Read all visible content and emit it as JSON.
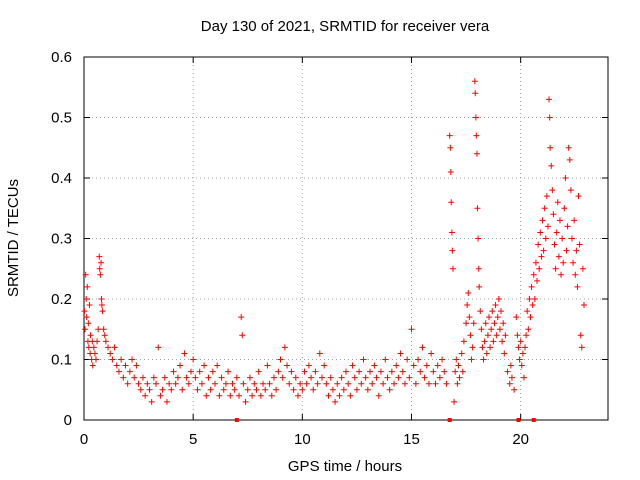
{
  "chart_data": {
    "type": "scatter",
    "title": "Day 130 of 2021, SRMTID for receiver vera",
    "xlabel": "GPS time / hours",
    "ylabel": "SRMTID / TECUs",
    "xlim": [
      0,
      24
    ],
    "ylim": [
      0,
      0.6
    ],
    "xticks": [
      0,
      5,
      10,
      15,
      20
    ],
    "xtick_labels": [
      "0",
      "5",
      "10",
      "15",
      "20"
    ],
    "yticks": [
      0,
      0.1,
      0.2,
      0.3,
      0.4,
      0.5,
      0.6
    ],
    "ytick_labels": [
      "0",
      "0.1",
      "0.2",
      "0.3",
      "0.4",
      "0.5",
      "0.6"
    ],
    "grid": true,
    "marker": "+",
    "color": "#ff0000",
    "series": [
      {
        "name": "SRMTID",
        "points": [
          [
            0.02,
            0.18
          ],
          [
            0.05,
            0.15
          ],
          [
            0.08,
            0.24
          ],
          [
            0.1,
            0.2
          ],
          [
            0.12,
            0.17
          ],
          [
            0.15,
            0.22
          ],
          [
            0.18,
            0.13
          ],
          [
            0.2,
            0.16
          ],
          [
            0.22,
            0.12
          ],
          [
            0.25,
            0.19
          ],
          [
            0.28,
            0.11
          ],
          [
            0.3,
            0.14
          ],
          [
            0.35,
            0.1
          ],
          [
            0.38,
            0.13
          ],
          [
            0.4,
            0.09
          ],
          [
            0.45,
            0.12
          ],
          [
            0.5,
            0.11
          ],
          [
            0.55,
            0.1
          ],
          [
            0.6,
            0.13
          ],
          [
            0.65,
            0.15
          ],
          [
            0.7,
            0.27
          ],
          [
            0.72,
            0.25
          ],
          [
            0.75,
            0.24
          ],
          [
            0.78,
            0.26
          ],
          [
            0.8,
            0.2
          ],
          [
            0.82,
            0.19
          ],
          [
            0.85,
            0.18
          ],
          [
            0.9,
            0.15
          ],
          [
            0.95,
            0.14
          ],
          [
            1.0,
            0.13
          ],
          [
            1.1,
            0.12
          ],
          [
            1.2,
            0.11
          ],
          [
            1.3,
            0.1
          ],
          [
            1.4,
            0.12
          ],
          [
            1.5,
            0.09
          ],
          [
            1.6,
            0.08
          ],
          [
            1.7,
            0.1
          ],
          [
            1.8,
            0.07
          ],
          [
            1.9,
            0.09
          ],
          [
            2.0,
            0.06
          ],
          [
            2.1,
            0.08
          ],
          [
            2.2,
            0.1
          ],
          [
            2.3,
            0.07
          ],
          [
            2.4,
            0.09
          ],
          [
            2.5,
            0.06
          ],
          [
            2.6,
            0.05
          ],
          [
            2.7,
            0.07
          ],
          [
            2.8,
            0.04
          ],
          [
            2.9,
            0.06
          ],
          [
            3.0,
            0.05
          ],
          [
            3.1,
            0.03
          ],
          [
            3.2,
            0.07
          ],
          [
            3.3,
            0.06
          ],
          [
            3.4,
            0.12
          ],
          [
            3.5,
            0.04
          ],
          [
            3.6,
            0.05
          ],
          [
            3.7,
            0.07
          ],
          [
            3.8,
            0.03
          ],
          [
            3.9,
            0.06
          ],
          [
            4.0,
            0.05
          ],
          [
            4.1,
            0.08
          ],
          [
            4.2,
            0.06
          ],
          [
            4.3,
            0.07
          ],
          [
            4.4,
            0.09
          ],
          [
            4.5,
            0.05
          ],
          [
            4.6,
            0.11
          ],
          [
            4.7,
            0.07
          ],
          [
            4.8,
            0.06
          ],
          [
            4.9,
            0.08
          ],
          [
            5.0,
            0.1
          ],
          [
            5.1,
            0.07
          ],
          [
            5.2,
            0.05
          ],
          [
            5.3,
            0.08
          ],
          [
            5.4,
            0.06
          ],
          [
            5.5,
            0.09
          ],
          [
            5.6,
            0.04
          ],
          [
            5.7,
            0.07
          ],
          [
            5.8,
            0.05
          ],
          [
            5.9,
            0.08
          ],
          [
            6.0,
            0.06
          ],
          [
            6.1,
            0.09
          ],
          [
            6.2,
            0.04
          ],
          [
            6.3,
            0.07
          ],
          [
            6.4,
            0.05
          ],
          [
            6.5,
            0.06
          ],
          [
            6.6,
            0.08
          ],
          [
            6.7,
            0.04
          ],
          [
            6.8,
            0.06
          ],
          [
            6.9,
            0.05
          ],
          [
            7.0,
            0.07
          ],
          [
            7.1,
            0.04
          ],
          [
            7.2,
            0.17
          ],
          [
            7.25,
            0.14
          ],
          [
            7.3,
            0.06
          ],
          [
            7.4,
            0.03
          ],
          [
            7.5,
            0.05
          ],
          [
            7.6,
            0.07
          ],
          [
            7.7,
            0.04
          ],
          [
            7.8,
            0.06
          ],
          [
            7.9,
            0.05
          ],
          [
            8.0,
            0.08
          ],
          [
            8.1,
            0.04
          ],
          [
            8.2,
            0.06
          ],
          [
            8.3,
            0.05
          ],
          [
            8.4,
            0.09
          ],
          [
            8.5,
            0.06
          ],
          [
            8.6,
            0.04
          ],
          [
            8.7,
            0.07
          ],
          [
            8.8,
            0.05
          ],
          [
            8.9,
            0.08
          ],
          [
            9.0,
            0.1
          ],
          [
            9.1,
            0.07
          ],
          [
            9.2,
            0.12
          ],
          [
            9.3,
            0.09
          ],
          [
            9.4,
            0.06
          ],
          [
            9.5,
            0.08
          ],
          [
            9.6,
            0.05
          ],
          [
            9.7,
            0.07
          ],
          [
            9.8,
            0.04
          ],
          [
            9.9,
            0.06
          ],
          [
            10.0,
            0.05
          ],
          [
            10.1,
            0.08
          ],
          [
            10.2,
            0.06
          ],
          [
            10.3,
            0.09
          ],
          [
            10.4,
            0.07
          ],
          [
            10.5,
            0.05
          ],
          [
            10.6,
            0.08
          ],
          [
            10.7,
            0.06
          ],
          [
            10.8,
            0.11
          ],
          [
            10.9,
            0.07
          ],
          [
            11.0,
            0.09
          ],
          [
            11.1,
            0.06
          ],
          [
            11.2,
            0.04
          ],
          [
            11.3,
            0.07
          ],
          [
            11.4,
            0.05
          ],
          [
            11.5,
            0.03
          ],
          [
            11.6,
            0.06
          ],
          [
            11.7,
            0.04
          ],
          [
            11.8,
            0.07
          ],
          [
            11.9,
            0.05
          ],
          [
            12.0,
            0.08
          ],
          [
            12.1,
            0.06
          ],
          [
            12.2,
            0.04
          ],
          [
            12.3,
            0.09
          ],
          [
            12.4,
            0.07
          ],
          [
            12.5,
            0.05
          ],
          [
            12.6,
            0.08
          ],
          [
            12.7,
            0.06
          ],
          [
            12.8,
            0.1
          ],
          [
            12.9,
            0.07
          ],
          [
            13.0,
            0.05
          ],
          [
            13.1,
            0.08
          ],
          [
            13.2,
            0.06
          ],
          [
            13.3,
            0.09
          ],
          [
            13.4,
            0.07
          ],
          [
            13.5,
            0.04
          ],
          [
            13.6,
            0.08
          ],
          [
            13.7,
            0.06
          ],
          [
            13.8,
            0.1
          ],
          [
            13.9,
            0.07
          ],
          [
            14.0,
            0.05
          ],
          [
            14.1,
            0.08
          ],
          [
            14.2,
            0.06
          ],
          [
            14.3,
            0.09
          ],
          [
            14.4,
            0.07
          ],
          [
            14.5,
            0.11
          ],
          [
            14.6,
            0.08
          ],
          [
            14.7,
            0.06
          ],
          [
            14.8,
            0.1
          ],
          [
            14.9,
            0.07
          ],
          [
            15.0,
            0.15
          ],
          [
            15.1,
            0.09
          ],
          [
            15.2,
            0.06
          ],
          [
            15.3,
            0.1
          ],
          [
            15.4,
            0.08
          ],
          [
            15.5,
            0.12
          ],
          [
            15.6,
            0.07
          ],
          [
            15.7,
            0.09
          ],
          [
            15.8,
            0.06
          ],
          [
            15.9,
            0.11
          ],
          [
            16.0,
            0.08
          ],
          [
            16.1,
            0.06
          ],
          [
            16.2,
            0.09
          ],
          [
            16.3,
            0.07
          ],
          [
            16.4,
            0.1
          ],
          [
            16.5,
            0.08
          ],
          [
            16.6,
            0.06
          ],
          [
            16.75,
            0.47
          ],
          [
            16.78,
            0.45
          ],
          [
            16.8,
            0.41
          ],
          [
            16.82,
            0.36
          ],
          [
            16.85,
            0.31
          ],
          [
            16.87,
            0.28
          ],
          [
            16.9,
            0.25
          ],
          [
            16.95,
            0.03
          ],
          [
            17.0,
            0.08
          ],
          [
            17.05,
            0.1
          ],
          [
            17.1,
            0.06
          ],
          [
            17.15,
            0.09
          ],
          [
            17.2,
            0.07
          ],
          [
            17.3,
            0.11
          ],
          [
            17.35,
            0.08
          ],
          [
            17.4,
            0.13
          ],
          [
            17.5,
            0.16
          ],
          [
            17.55,
            0.19
          ],
          [
            17.6,
            0.21
          ],
          [
            17.65,
            0.17
          ],
          [
            17.7,
            0.14
          ],
          [
            17.75,
            0.1
          ],
          [
            17.8,
            0.12
          ],
          [
            17.85,
            0.16
          ],
          [
            17.9,
            0.56
          ],
          [
            17.92,
            0.54
          ],
          [
            17.95,
            0.5
          ],
          [
            17.97,
            0.47
          ],
          [
            18.0,
            0.44
          ],
          [
            18.02,
            0.35
          ],
          [
            18.05,
            0.3
          ],
          [
            18.08,
            0.25
          ],
          [
            18.1,
            0.22
          ],
          [
            18.15,
            0.18
          ],
          [
            18.2,
            0.15
          ],
          [
            18.25,
            0.12
          ],
          [
            18.3,
            0.1
          ],
          [
            18.35,
            0.13
          ],
          [
            18.4,
            0.16
          ],
          [
            18.45,
            0.11
          ],
          [
            18.5,
            0.14
          ],
          [
            18.55,
            0.17
          ],
          [
            18.6,
            0.12
          ],
          [
            18.65,
            0.15
          ],
          [
            18.7,
            0.18
          ],
          [
            18.75,
            0.13
          ],
          [
            18.8,
            0.16
          ],
          [
            18.85,
            0.19
          ],
          [
            18.9,
            0.14
          ],
          [
            18.95,
            0.17
          ],
          [
            19.0,
            0.2
          ],
          [
            19.05,
            0.15
          ],
          [
            19.1,
            0.18
          ],
          [
            19.15,
            0.13
          ],
          [
            19.2,
            0.16
          ],
          [
            19.25,
            0.11
          ],
          [
            19.3,
            0.14
          ],
          [
            19.4,
            0.08
          ],
          [
            19.5,
            0.06
          ],
          [
            19.55,
            0.09
          ],
          [
            19.6,
            0.07
          ],
          [
            19.7,
            0.05
          ],
          [
            19.8,
            0.17
          ],
          [
            19.85,
            0.14
          ],
          [
            19.9,
            0.12
          ],
          [
            19.95,
            0.1
          ],
          [
            20.0,
            0.13
          ],
          [
            20.05,
            0.09
          ],
          [
            20.1,
            0.11
          ],
          [
            20.15,
            0.07
          ],
          [
            20.2,
            0.12
          ],
          [
            20.25,
            0.14
          ],
          [
            20.3,
            0.18
          ],
          [
            20.35,
            0.15
          ],
          [
            20.4,
            0.2
          ],
          [
            20.45,
            0.17
          ],
          [
            20.5,
            0.22
          ],
          [
            20.55,
            0.19
          ],
          [
            20.6,
            0.24
          ],
          [
            20.65,
            0.2
          ],
          [
            20.7,
            0.26
          ],
          [
            20.75,
            0.23
          ],
          [
            20.8,
            0.29
          ],
          [
            20.85,
            0.25
          ],
          [
            20.9,
            0.31
          ],
          [
            20.95,
            0.27
          ],
          [
            21.0,
            0.33
          ],
          [
            21.05,
            0.28
          ],
          [
            21.1,
            0.35
          ],
          [
            21.15,
            0.3
          ],
          [
            21.2,
            0.37
          ],
          [
            21.25,
            0.32
          ],
          [
            21.3,
            0.53
          ],
          [
            21.33,
            0.5
          ],
          [
            21.35,
            0.45
          ],
          [
            21.4,
            0.42
          ],
          [
            21.45,
            0.38
          ],
          [
            21.5,
            0.34
          ],
          [
            21.55,
            0.29
          ],
          [
            21.6,
            0.25
          ],
          [
            21.65,
            0.31
          ],
          [
            21.7,
            0.36
          ],
          [
            21.75,
            0.27
          ],
          [
            21.8,
            0.33
          ],
          [
            21.85,
            0.24
          ],
          [
            21.9,
            0.3
          ],
          [
            21.95,
            0.26
          ],
          [
            22.0,
            0.35
          ],
          [
            22.05,
            0.4
          ],
          [
            22.1,
            0.28
          ],
          [
            22.15,
            0.32
          ],
          [
            22.2,
            0.45
          ],
          [
            22.25,
            0.43
          ],
          [
            22.3,
            0.38
          ],
          [
            22.35,
            0.3
          ],
          [
            22.4,
            0.26
          ],
          [
            22.45,
            0.33
          ],
          [
            22.5,
            0.24
          ],
          [
            22.55,
            0.28
          ],
          [
            22.6,
            0.22
          ],
          [
            22.65,
            0.37
          ],
          [
            22.7,
            0.29
          ],
          [
            22.75,
            0.14
          ],
          [
            22.8,
            0.12
          ],
          [
            22.85,
            0.25
          ],
          [
            22.9,
            0.19
          ]
        ]
      }
    ],
    "zero_markers": [
      7.0,
      16.75,
      19.9,
      20.6
    ]
  }
}
